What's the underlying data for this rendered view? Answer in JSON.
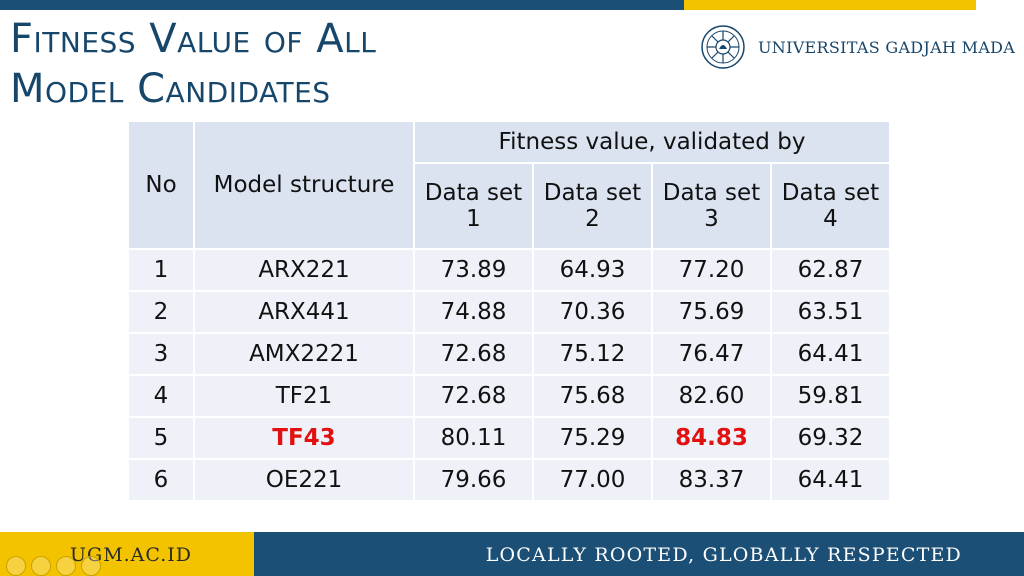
{
  "slide": {
    "title_line1": "Fitness Value of All",
    "title_line2": "Model Candidates",
    "logo_text": "UNIVERSITAS GADJAH MADA"
  },
  "table": {
    "header_no": "No",
    "header_model": "Model structure",
    "header_fitness": "Fitness value, validated by",
    "datasets": [
      {
        "l1": "Data set",
        "l2": "1"
      },
      {
        "l1": "Data set",
        "l2": "2"
      },
      {
        "l1": "Data set",
        "l2": "3"
      },
      {
        "l1": "Data set",
        "l2": "4"
      }
    ],
    "rows": [
      {
        "no": "1",
        "model": "ARX221",
        "v": [
          "73.89",
          "64.93",
          "77.20",
          "62.87"
        ]
      },
      {
        "no": "2",
        "model": "ARX441",
        "v": [
          "74.88",
          "70.36",
          "75.69",
          "63.51"
        ]
      },
      {
        "no": "3",
        "model": "AMX2221",
        "v": [
          "72.68",
          "75.12",
          "76.47",
          "64.41"
        ]
      },
      {
        "no": "4",
        "model": "TF21",
        "v": [
          "72.68",
          "75.68",
          "82.60",
          "59.81"
        ]
      },
      {
        "no": "5",
        "model": "TF43",
        "v": [
          "80.11",
          "75.29",
          "84.83",
          "69.32"
        ]
      },
      {
        "no": "6",
        "model": "OE221",
        "v": [
          "79.66",
          "77.00",
          "83.37",
          "64.41"
        ]
      }
    ]
  },
  "footer": {
    "left": "UGM.AC.ID",
    "right": "LOCALLY ROOTED, GLOBALLY RESPECTED"
  },
  "colors": {
    "brand_blue": "#1b4f75",
    "brand_yellow": "#f3c300",
    "highlight_red": "#e11111"
  },
  "icons": [
    "ugm-logo-icon",
    "nav-prev-icon",
    "nav-next-icon",
    "nav-menu-icon",
    "nav-zoom-icon"
  ]
}
